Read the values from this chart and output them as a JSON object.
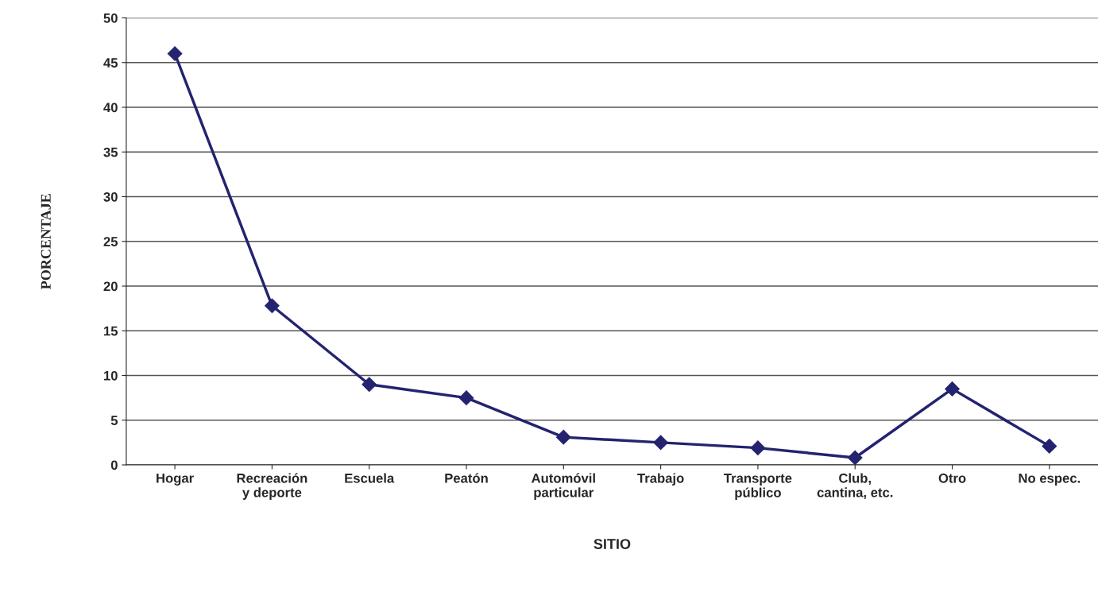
{
  "chart_data": {
    "type": "line",
    "xlabel": "SITIO",
    "ylabel": "PORCENTAJE",
    "categories": [
      "Hogar",
      "Recreación\ny deporte",
      "Escuela",
      "Peatón",
      "Automóvil\nparticular",
      "Trabajo",
      "Transporte\npúblico",
      "Club,\ncantina, etc.",
      "Otro",
      "No espec."
    ],
    "series": [
      {
        "color": "#232370",
        "values": [
          46,
          17.8,
          9,
          7.5,
          3.1,
          2.5,
          1.9,
          0.8,
          8.5,
          2.1
        ]
      }
    ],
    "ylim": [
      0,
      50
    ],
    "yticks": [
      0,
      5,
      10,
      15,
      20,
      25,
      30,
      35,
      40,
      45,
      50
    ],
    "grid": "y",
    "marker": "diamond",
    "line_style": "solid",
    "legend": false
  }
}
